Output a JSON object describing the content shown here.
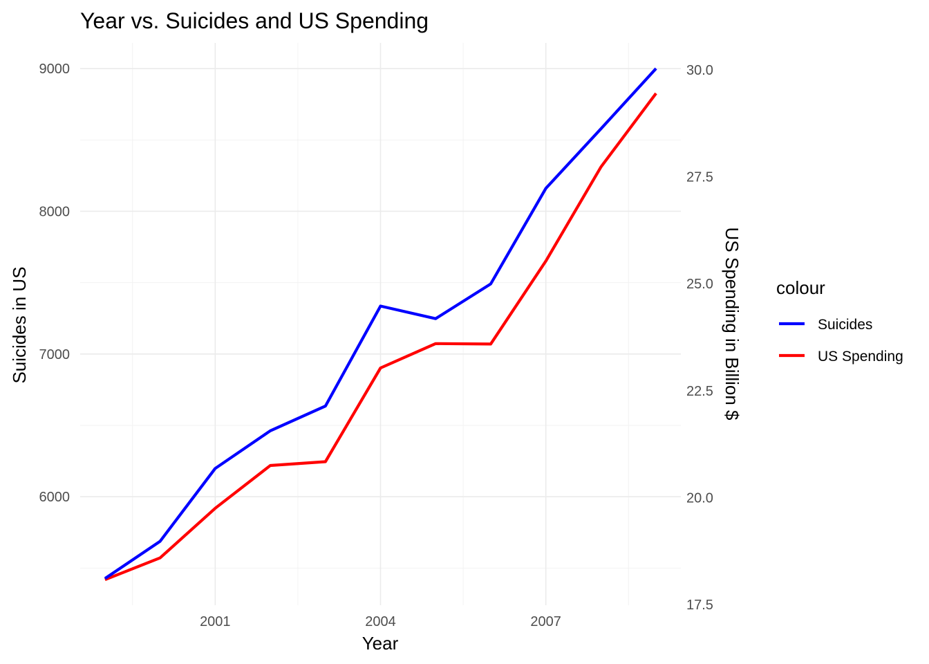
{
  "chart_data": {
    "type": "line",
    "title": "Year vs. Suicides and US Spending",
    "xlabel": "Year",
    "ylabel": "Suicides in US",
    "y2label": "US Spending in Billion $",
    "legend_title": "colour",
    "legend_position": "right",
    "grid": true,
    "x": [
      1999,
      2000,
      2001,
      2002,
      2003,
      2004,
      2005,
      2006,
      2007,
      2008,
      2009
    ],
    "xlim": [
      1998.55,
      2009.45
    ],
    "x_ticks": [
      2001,
      2004,
      2007
    ],
    "x_tick_labels": [
      "2001",
      "2004",
      "2007"
    ],
    "ylim": [
      5240,
      9180
    ],
    "y_ticks": [
      6000,
      7000,
      8000,
      9000
    ],
    "y_tick_labels": [
      "6000",
      "7000",
      "8000",
      "9000"
    ],
    "y2lim": [
      17.5,
      30.0
    ],
    "y2_ticks": [
      17.5,
      20.0,
      22.5,
      25.0,
      27.5,
      30.0
    ],
    "y2_tick_labels": [
      "17.5",
      "20.0",
      "22.5",
      "25.0",
      "27.5",
      "30.0"
    ],
    "series": [
      {
        "name": "Suicides",
        "color": "#0000ff",
        "axis": "left",
        "values": [
          5427,
          5688,
          6198,
          6462,
          6635,
          7336,
          7248,
          7491,
          8161,
          8578,
          9000
        ]
      },
      {
        "name": "US Spending",
        "color": "#ff0000",
        "axis": "right",
        "values": [
          18.08,
          18.59,
          19.75,
          20.75,
          20.84,
          23.03,
          23.6,
          23.59,
          25.53,
          27.73,
          29.45
        ]
      }
    ]
  }
}
